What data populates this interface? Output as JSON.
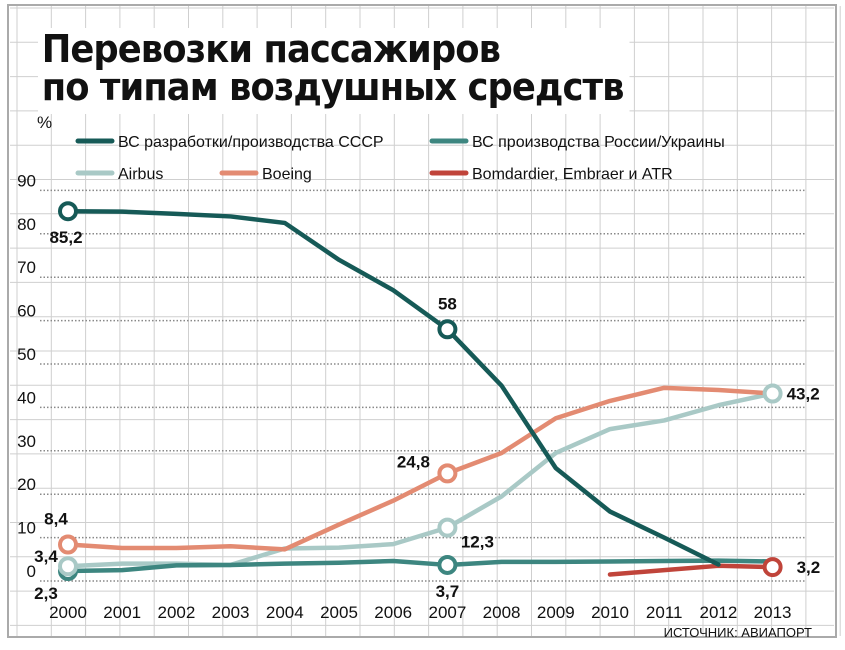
{
  "title": {
    "line1": "Перевозки пассажиров",
    "line2": "по типам воздушных средств"
  },
  "source": "ИСТОЧНИК: АВИАПОРТ",
  "chart_data": {
    "type": "line",
    "title": "Перевозки пассажиров по типам воздушных средств",
    "ylabel": "%",
    "xlabel": "",
    "ylim": [
      0,
      90
    ],
    "yticks": [
      "0",
      "10",
      "20",
      "30",
      "40",
      "50",
      "60",
      "70",
      "80",
      "90"
    ],
    "x": [
      "2000",
      "2001",
      "2002",
      "2003",
      "2004",
      "2005",
      "2006",
      "2007",
      "2008",
      "2009",
      "2010",
      "2011",
      "2012",
      "2013"
    ],
    "legend_placement": "top",
    "series": [
      {
        "name": "ВС разработки/производства СССР",
        "color": "#165a57",
        "values": [
          85.2,
          85.1,
          84.6,
          84,
          82.5,
          74,
          67,
          58,
          45,
          26,
          16,
          10,
          3.8,
          null
        ]
      },
      {
        "name": "ВС производства России/Украины",
        "color": "#3d8680",
        "values": [
          2.3,
          2.5,
          3.6,
          3.7,
          4,
          4.2,
          4.6,
          3.7,
          4.4,
          4.4,
          4.5,
          4.6,
          4.7,
          4.5
        ]
      },
      {
        "name": "Airbus",
        "color": "#a9c9c6",
        "values": [
          3.4,
          4,
          4,
          3.7,
          7.5,
          7.7,
          8.5,
          12.3,
          19.5,
          29.5,
          35,
          37,
          40.5,
          43.2
        ]
      },
      {
        "name": "Boeing",
        "color": "#e38b72",
        "values": [
          8.4,
          7.6,
          7.6,
          8,
          7.3,
          13,
          18.5,
          24.8,
          29.5,
          37.5,
          41.5,
          44.5,
          44,
          43.2
        ]
      },
      {
        "name": "Bomdardier, Embraer и ATR",
        "color": "#c0443a",
        "values": [
          null,
          null,
          null,
          null,
          null,
          null,
          null,
          null,
          null,
          null,
          1.5,
          2.5,
          3.5,
          3.2
        ]
      }
    ],
    "annotations": [
      {
        "series": 0,
        "x": "2000",
        "label": "85,2"
      },
      {
        "series": 0,
        "x": "2007",
        "label": "58"
      },
      {
        "series": 1,
        "x": "2000",
        "label": "2,3"
      },
      {
        "series": 1,
        "x": "2007",
        "label": "3,7"
      },
      {
        "series": 2,
        "x": "2000",
        "label": "3,4"
      },
      {
        "series": 2,
        "x": "2007",
        "label": "12,3"
      },
      {
        "series": 2,
        "x": "2013",
        "label": "43,2"
      },
      {
        "series": 3,
        "x": "2000",
        "label": "8,4"
      },
      {
        "series": 3,
        "x": "2007",
        "label": "24,8"
      },
      {
        "series": 4,
        "x": "2013",
        "label": "3,2"
      }
    ]
  }
}
